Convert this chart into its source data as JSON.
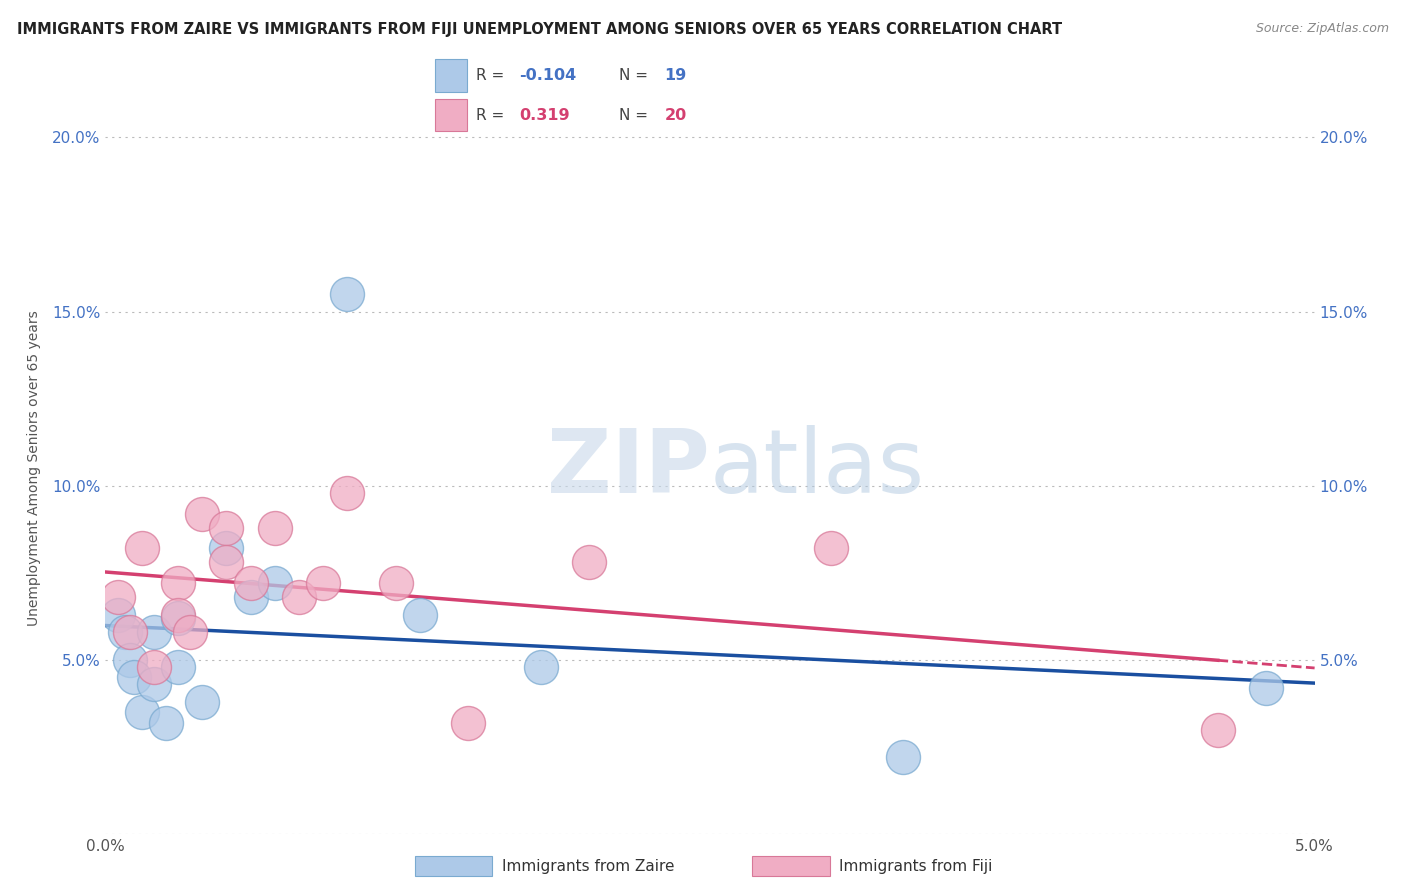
{
  "title": "IMMIGRANTS FROM ZAIRE VS IMMIGRANTS FROM FIJI UNEMPLOYMENT AMONG SENIORS OVER 65 YEARS CORRELATION CHART",
  "source": "Source: ZipAtlas.com",
  "ylabel": "Unemployment Among Seniors over 65 years",
  "xlim": [
    0.0,
    0.05
  ],
  "ylim": [
    0.0,
    0.21
  ],
  "xtick_vals": [
    0.0,
    0.01,
    0.02,
    0.03,
    0.04,
    0.05
  ],
  "xticklabels": [
    "0.0%",
    "",
    "",
    "",
    "",
    "5.0%"
  ],
  "ytick_vals": [
    0.0,
    0.05,
    0.1,
    0.15,
    0.2
  ],
  "yticklabels_left": [
    "",
    "5.0%",
    "10.0%",
    "15.0%",
    "20.0%"
  ],
  "yticklabels_right": [
    "",
    "5.0%",
    "10.0%",
    "15.0%",
    "20.0%"
  ],
  "zaire_color": "#adc9e8",
  "zaire_edge": "#7aaad0",
  "fiji_color": "#f0adc4",
  "fiji_edge": "#d87898",
  "zaire_line_color": "#1a4fa0",
  "fiji_line_color": "#d44070",
  "watermark_color": "#dce8f5",
  "zaire_R": "-0.104",
  "zaire_N": "19",
  "fiji_R": "0.319",
  "fiji_N": "20",
  "legend_R_color_zaire": "#4472c4",
  "legend_R_color_fiji": "#d44070",
  "legend_N_color_zaire": "#4472c4",
  "legend_N_color_fiji": "#d44070",
  "zaire_x": [
    0.0005,
    0.0008,
    0.001,
    0.0012,
    0.0015,
    0.002,
    0.002,
    0.0025,
    0.003,
    0.003,
    0.004,
    0.005,
    0.006,
    0.007,
    0.01,
    0.013,
    0.018,
    0.033,
    0.048
  ],
  "zaire_y": [
    0.063,
    0.058,
    0.05,
    0.045,
    0.035,
    0.058,
    0.043,
    0.032,
    0.062,
    0.048,
    0.038,
    0.082,
    0.068,
    0.072,
    0.155,
    0.063,
    0.048,
    0.022,
    0.042
  ],
  "fiji_x": [
    0.0005,
    0.001,
    0.0015,
    0.002,
    0.003,
    0.003,
    0.0035,
    0.004,
    0.005,
    0.005,
    0.006,
    0.007,
    0.008,
    0.009,
    0.01,
    0.012,
    0.015,
    0.02,
    0.03,
    0.046
  ],
  "fiji_y": [
    0.068,
    0.058,
    0.082,
    0.048,
    0.072,
    0.063,
    0.058,
    0.092,
    0.088,
    0.078,
    0.072,
    0.088,
    0.068,
    0.072,
    0.098,
    0.072,
    0.032,
    0.078,
    0.082,
    0.03
  ]
}
